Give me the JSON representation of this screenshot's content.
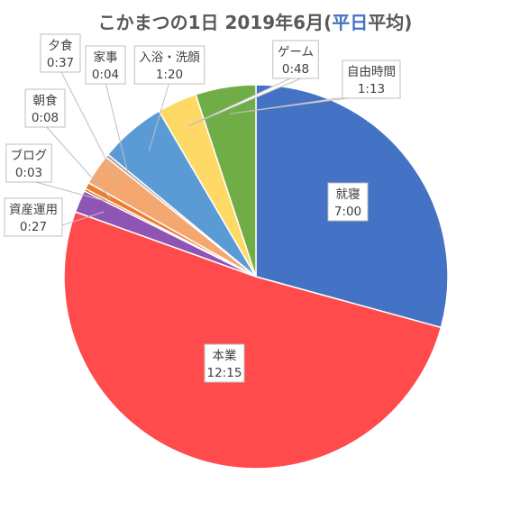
{
  "chart_data": {
    "type": "pie",
    "title": {
      "prefix": "こかまつの1日 2019年6月(",
      "accent": "平日",
      "suffix": "平均)"
    },
    "colors": {
      "title": "#595959",
      "title_accent": "#4472c4",
      "label_text": "#404040",
      "leader": "#bfbfbf"
    },
    "slices": [
      {
        "name": "就寝",
        "value_text": "7:00",
        "minutes": 420,
        "color": "#4472c4"
      },
      {
        "name": "本業",
        "value_text": "12:15",
        "minutes": 735,
        "color": "#ff4b4b"
      },
      {
        "name": "資産運用",
        "value_text": "0:27",
        "minutes": 27,
        "color": "#8e55b5"
      },
      {
        "name": "ブログ",
        "value_text": "0:03",
        "minutes": 3,
        "color": "#c55a11"
      },
      {
        "name": "朝食",
        "value_text": "0:08",
        "minutes": 8,
        "color": "#ed7d31"
      },
      {
        "name": "夕食",
        "value_text": "0:37",
        "minutes": 37,
        "color": "#f4a76e"
      },
      {
        "name": "家事",
        "value_text": "0:04",
        "minutes": 4,
        "color": "#a5a5a5"
      },
      {
        "name": "入浴・洗顔",
        "value_text": "1:20",
        "minutes": 80,
        "color": "#5b9bd5"
      },
      {
        "name": "ゲーム",
        "value_text": "0:48",
        "minutes": 48,
        "color": "#ffd966"
      },
      {
        "name": "自由時間",
        "value_text": "1:13",
        "minutes": 73,
        "color": "#70ad47"
      }
    ]
  }
}
